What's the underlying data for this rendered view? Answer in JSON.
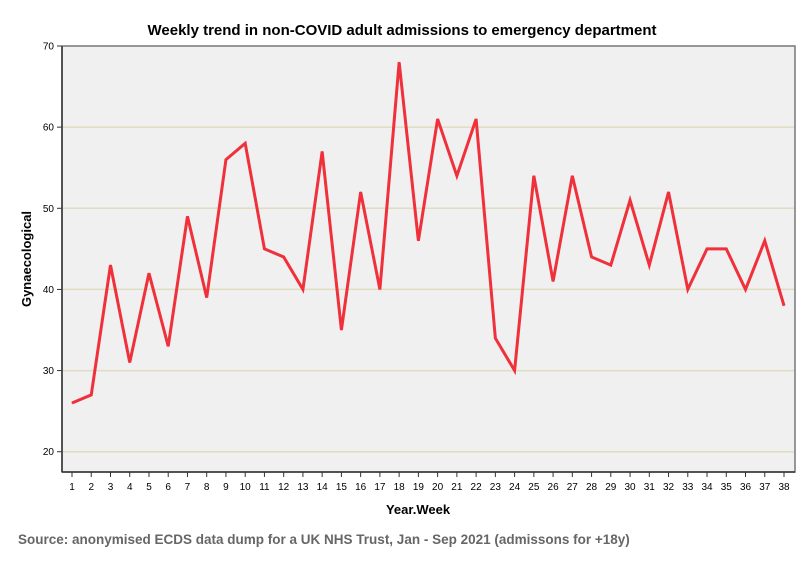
{
  "chart_data": {
    "type": "line",
    "title": "Weekly trend in non-COVID adult admissions to emergency department",
    "xlabel": "Year.Week",
    "ylabel": "Gynaecological",
    "x": [
      1,
      2,
      3,
      4,
      5,
      6,
      7,
      8,
      9,
      10,
      11,
      12,
      13,
      14,
      15,
      16,
      17,
      18,
      19,
      20,
      21,
      22,
      23,
      24,
      25,
      26,
      27,
      28,
      29,
      30,
      31,
      32,
      33,
      34,
      35,
      36,
      37,
      38
    ],
    "series": [
      {
        "name": "Gynaecological",
        "color": "#f0303a",
        "values": [
          26,
          27,
          43,
          31,
          42,
          33,
          49,
          39,
          56,
          58,
          45,
          44,
          40,
          57,
          35,
          52,
          40,
          68,
          46,
          61,
          54,
          61,
          34,
          30,
          54,
          41,
          54,
          44,
          43,
          51,
          43,
          52,
          40,
          45,
          45,
          40,
          46,
          38
        ]
      }
    ],
    "yticks": [
      20,
      30,
      40,
      50,
      60,
      70
    ],
    "ylim": [
      17.5,
      70
    ],
    "grid": true,
    "legend": "none",
    "colors": {
      "plot_bg": "#f0f0f0",
      "grid": "#e0dcc0",
      "line": "#f0303a"
    }
  },
  "source_note": "Source: anonymised ECDS data dump for a UK NHS Trust, Jan - Sep 2021 (admissons for +18y)"
}
